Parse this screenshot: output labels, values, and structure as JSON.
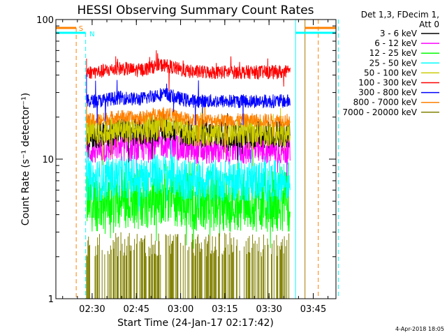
{
  "chart_data": {
    "type": "line",
    "title": "HESSI Observing Summary Count Rates",
    "xlabel": "Start Time (24-Jan-17 02:17:42)",
    "ylabel": "Count Rate (s⁻¹ detector⁻¹)",
    "yscale": "log",
    "ylim": [
      1,
      100
    ],
    "xlim_minutes": [
      0,
      95
    ],
    "x_ticks": [
      "02:30",
      "02:45",
      "03:00",
      "03:15",
      "03:30",
      "03:45"
    ],
    "y_ticks": [
      "1",
      "10",
      "100"
    ],
    "legend_header": [
      "Det 1,3, FDecim 1,",
      "Att 0"
    ],
    "legend_position": "right",
    "footer": "4-Apr-2018 18:05",
    "markers": [
      {
        "label": "S",
        "color": "#ff8000",
        "style": "dashed"
      },
      {
        "label": "N",
        "color": "#00ffff",
        "style": "dashed"
      }
    ],
    "series": [
      {
        "name": "3 - 6 keV",
        "color": "#000000",
        "level": 15
      },
      {
        "name": "6 - 12 keV",
        "color": "#ff00ff",
        "level": 11.5
      },
      {
        "name": "12 - 25 keV",
        "color": "#00ff00",
        "level": 5
      },
      {
        "name": "25 - 50 keV",
        "color": "#00ffff",
        "level": 7
      },
      {
        "name": "50 - 100 keV",
        "color": "#cccc00",
        "level": 15.5
      },
      {
        "name": "100 - 300 keV",
        "color": "#ff0000",
        "level": 42
      },
      {
        "name": "300 - 800 keV",
        "color": "#0000ff",
        "level": 26
      },
      {
        "name": "800 - 7000 keV",
        "color": "#ff8000",
        "level": 19
      },
      {
        "name": "7000 - 20000 keV",
        "color": "#808000",
        "level": 1.8
      }
    ]
  }
}
